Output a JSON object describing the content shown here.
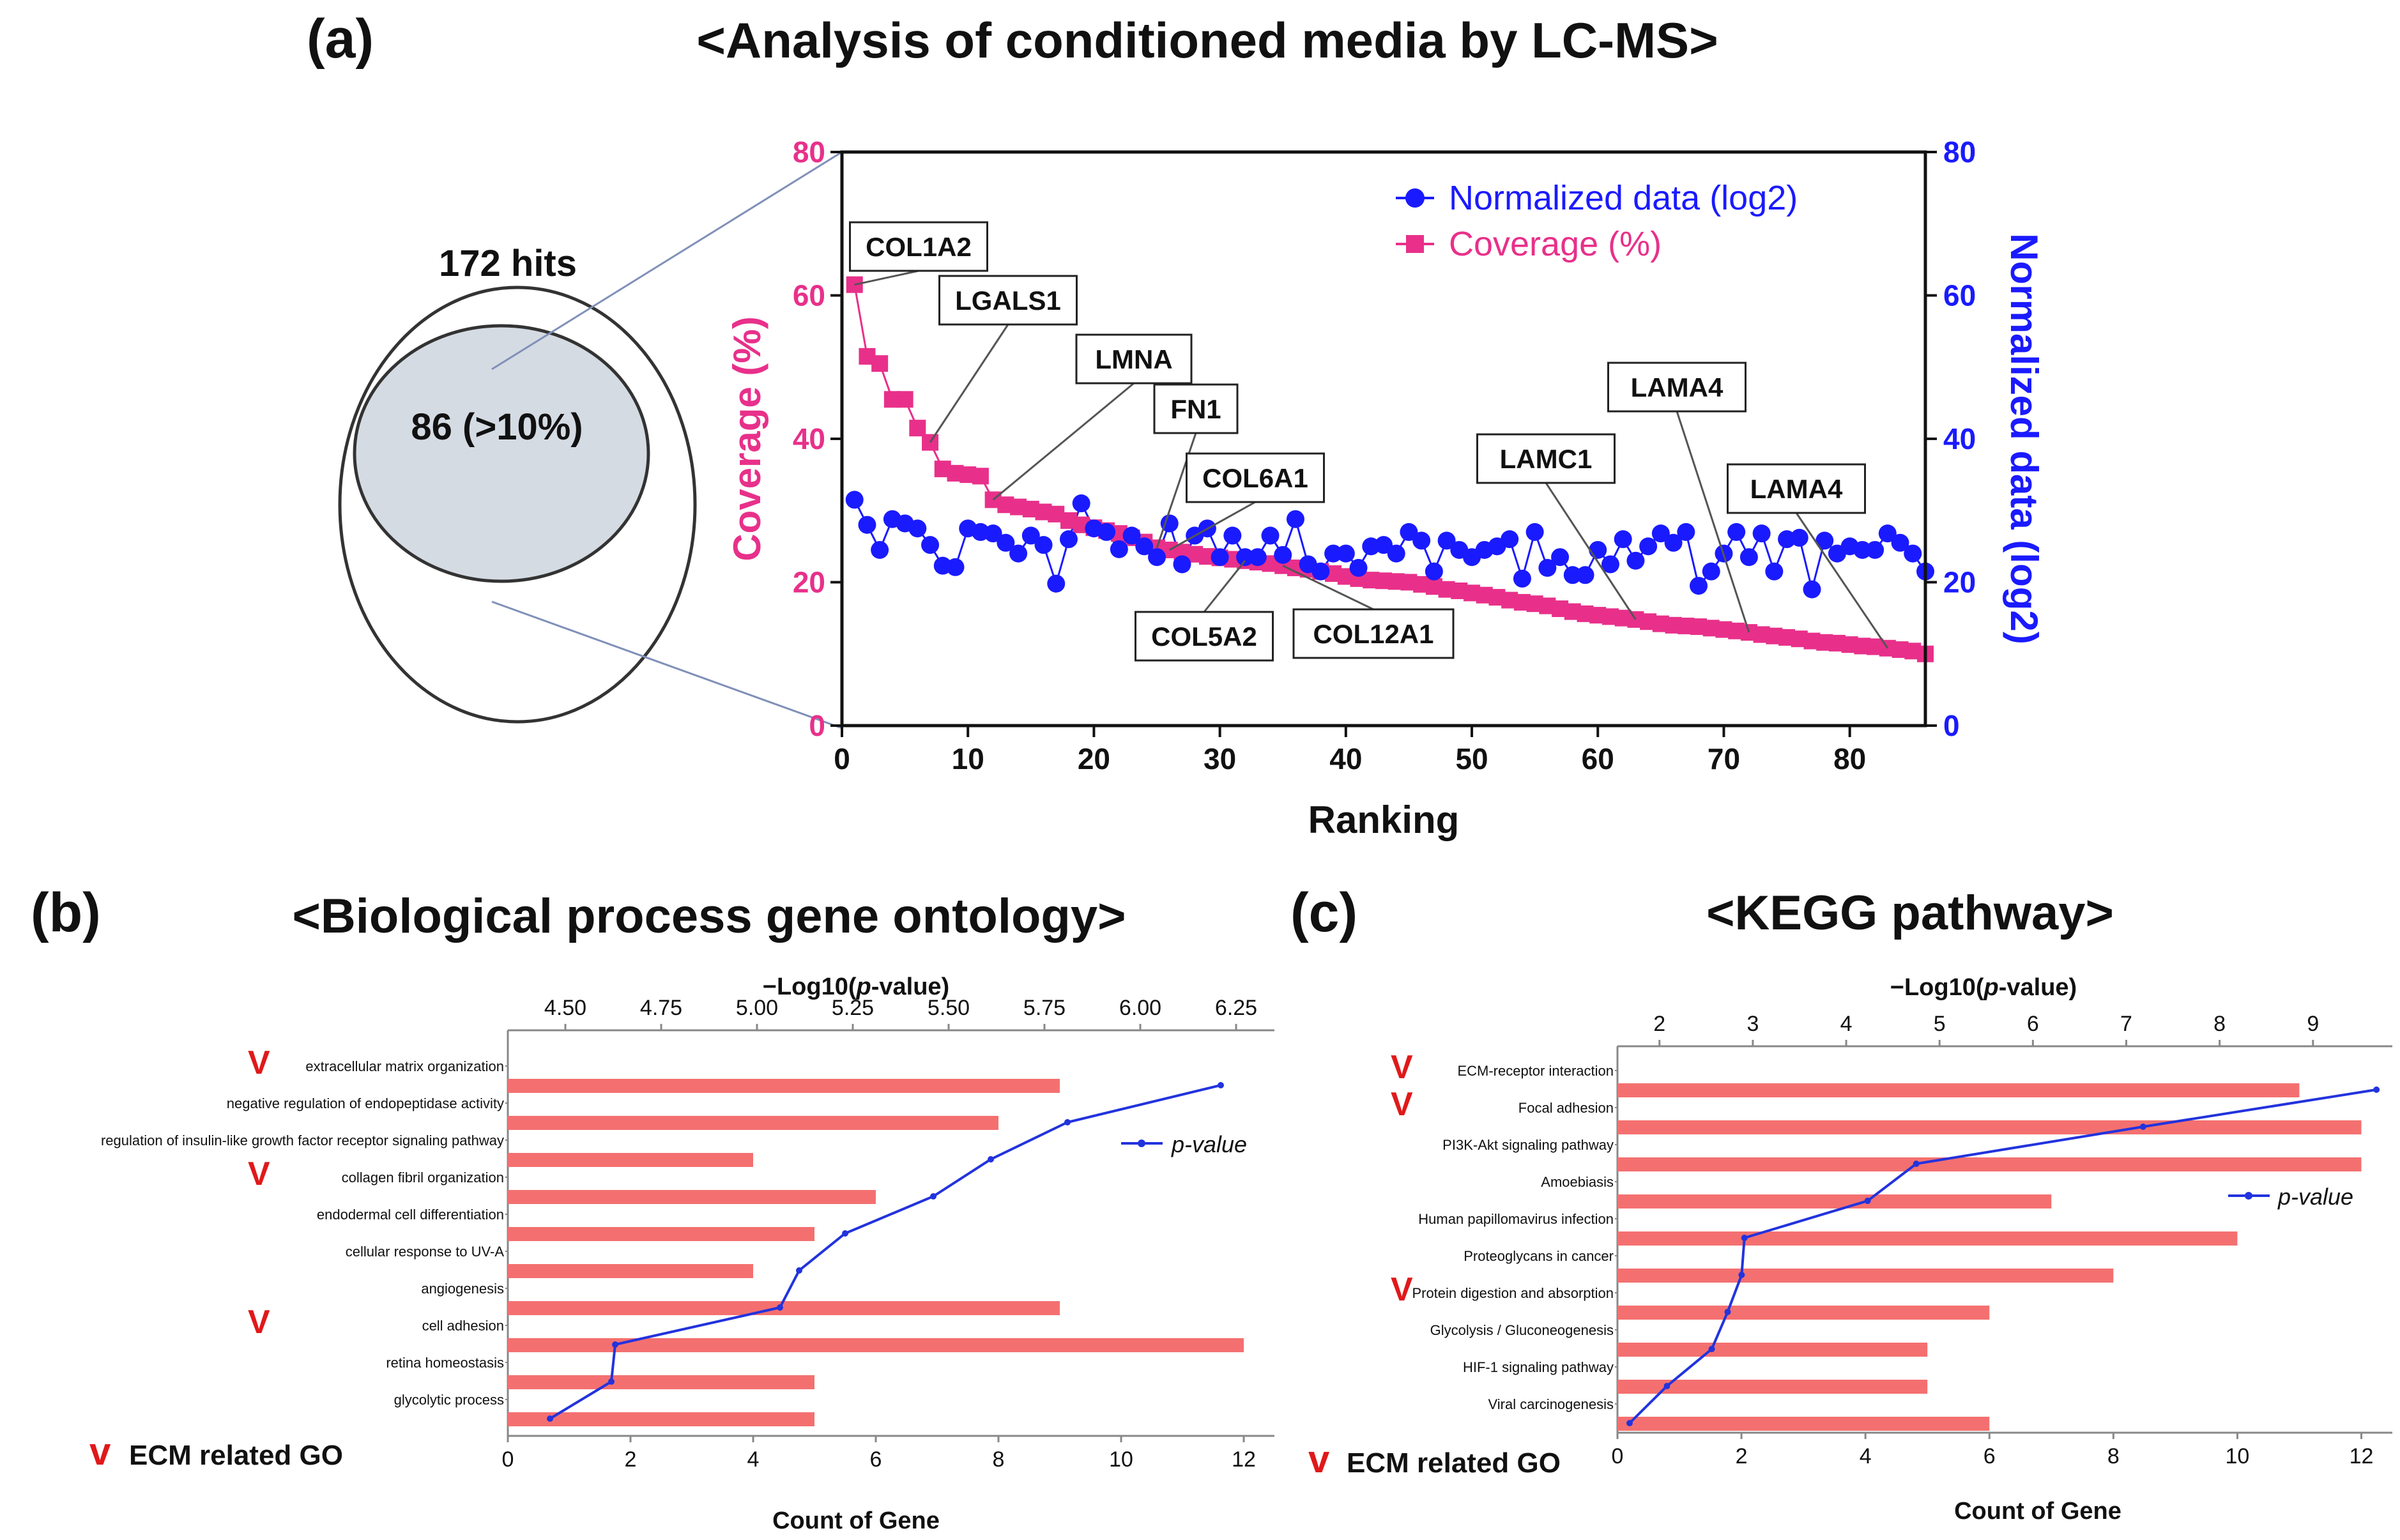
{
  "panels": {
    "a": {
      "label": "(a)",
      "title": "<Analysis of conditioned media by LC-MS>"
    },
    "b": {
      "label": "(b)",
      "title": "<Biological process gene ontology>"
    },
    "c": {
      "label": "(c)",
      "title": "<KEGG pathway>"
    }
  },
  "venn": {
    "outer_label": "172 hits",
    "inner_label": "86 (>10%)"
  },
  "colors": {
    "pink": "#e8308a",
    "blue": "#1a1aff",
    "bar": "#f47070",
    "line": "#2233dd",
    "check": "#e0191a",
    "venn_inner": "#d5dbe3"
  },
  "chart_data": [
    {
      "id": "lcms",
      "type": "scatter",
      "title": "<Analysis of conditioned media by LC-MS>",
      "xlabel": "Ranking",
      "ylabel": "Coverage (%)",
      "y2label": "Normalized data (log2)",
      "xlim": [
        0,
        86
      ],
      "ylim": [
        0,
        80
      ],
      "y2lim": [
        0,
        80
      ],
      "xticks": [
        0,
        10,
        20,
        30,
        40,
        50,
        60,
        70,
        80
      ],
      "yticks": [
        0,
        20,
        40,
        60,
        80
      ],
      "legend": [
        "Normalized data (log2)",
        "Coverage (%)"
      ],
      "legend_position": "top-right",
      "series": [
        {
          "name": "Coverage (%)",
          "axis": "left",
          "marker": "square",
          "values": [
            61.5,
            51.5,
            50.5,
            45.5,
            45.5,
            41.5,
            39.5,
            35.8,
            35.2,
            35.0,
            34.8,
            31.5,
            30.8,
            30.5,
            30.2,
            29.8,
            29.5,
            28.6,
            28.0,
            27.6,
            27.2,
            26.8,
            26.2,
            25.6,
            24.8,
            24.5,
            24.2,
            23.9,
            23.6,
            23.4,
            23.2,
            23.0,
            22.8,
            22.6,
            22.3,
            22.0,
            21.8,
            21.5,
            21.2,
            20.8,
            20.5,
            20.3,
            20.2,
            20.1,
            20.0,
            19.7,
            19.4,
            19.0,
            18.8,
            18.5,
            18.2,
            17.9,
            17.5,
            17.2,
            17.0,
            16.7,
            16.3,
            15.9,
            15.6,
            15.4,
            15.2,
            15.0,
            14.8,
            14.5,
            14.2,
            14.0,
            13.9,
            13.8,
            13.6,
            13.4,
            13.2,
            13.0,
            12.7,
            12.5,
            12.3,
            12.1,
            11.8,
            11.6,
            11.5,
            11.3,
            11.1,
            11.0,
            10.8,
            10.6,
            10.4,
            10.0
          ]
        },
        {
          "name": "Normalized data (log2)",
          "axis": "right",
          "marker": "circle",
          "values": [
            31.5,
            28.0,
            24.5,
            28.8,
            28.2,
            27.5,
            25.2,
            22.3,
            22.1,
            27.5,
            27.0,
            26.8,
            25.5,
            24.0,
            26.5,
            25.2,
            19.8,
            26.0,
            31.0,
            27.5,
            27.0,
            24.6,
            26.5,
            25.0,
            23.5,
            28.2,
            22.5,
            26.5,
            27.5,
            23.5,
            26.5,
            23.5,
            23.5,
            26.5,
            23.8,
            28.8,
            22.5,
            21.5,
            24.0,
            24.0,
            22.0,
            25.0,
            25.2,
            24.0,
            27.0,
            25.8,
            21.5,
            25.8,
            24.5,
            23.5,
            24.5,
            25.0,
            26.0,
            20.5,
            27.0,
            22.0,
            23.5,
            21.0,
            21.0,
            24.5,
            22.5,
            26.0,
            23.0,
            25.0,
            26.8,
            25.5,
            27.0,
            19.5,
            21.5,
            24.0,
            27.0,
            23.5,
            26.8,
            21.5,
            26.0,
            26.2,
            19.0,
            25.8,
            24.0,
            25.0,
            24.5,
            24.5,
            26.8,
            25.5,
            24.0,
            21.5
          ]
        }
      ],
      "annotations": [
        {
          "text": "COL1A2",
          "rank": 1
        },
        {
          "text": "LGALS1",
          "rank": 7
        },
        {
          "text": "LMNA",
          "rank": 12
        },
        {
          "text": "FN1",
          "rank": 25
        },
        {
          "text": "COL6A1",
          "rank": 26
        },
        {
          "text": "COL5A2",
          "rank": 32
        },
        {
          "text": "COL12A1",
          "rank": 35
        },
        {
          "text": "LAMC1",
          "rank": 63
        },
        {
          "text": "LAMA4",
          "rank": 72
        },
        {
          "text": "LAMA4",
          "rank": 83
        }
      ]
    },
    {
      "id": "go",
      "type": "bar",
      "title": "<Biological process gene ontology>",
      "xlabel": "Count of Gene",
      "x2label": "−Log10(p-value)",
      "xlim": [
        0,
        12.5
      ],
      "xticks": [
        0,
        2,
        4,
        6,
        8,
        10,
        12
      ],
      "x2lim": [
        4.35,
        6.35
      ],
      "x2ticks": [
        "4.50",
        "4.75",
        "5.00",
        "5.25",
        "5.50",
        "5.75",
        "6.00",
        "6.25"
      ],
      "categories": [
        "extracellular matrix organization",
        "negative regulation of endopeptidase activity",
        "regulation of insulin-like growth factor receptor signaling pathway",
        "collagen fibril organization",
        "endodermal cell differentiation",
        "cellular response to UV-A",
        "angiogenesis",
        "cell adhesion",
        "retina homeostasis",
        "glycolytic  process"
      ],
      "ecm_related": [
        true,
        false,
        false,
        true,
        false,
        false,
        false,
        true,
        false,
        false
      ],
      "series": [
        {
          "name": "Count of Gene",
          "values": [
            9,
            8,
            4,
            6,
            5,
            4,
            9,
            12,
            5,
            5
          ]
        },
        {
          "name": "p-value",
          "values": [
            6.21,
            5.81,
            5.61,
            5.46,
            5.23,
            5.11,
            5.06,
            4.63,
            4.62,
            4.46
          ]
        }
      ],
      "legend": "p-value",
      "legend_position": "top-right",
      "footnote_mark": "v",
      "footnote": "ECM related GO"
    },
    {
      "id": "kegg",
      "type": "bar",
      "title": "<KEGG pathway>",
      "xlabel": "Count of Gene",
      "x2label": "−Log10(p-value)",
      "xlim": [
        0,
        12.5
      ],
      "xticks": [
        0,
        2,
        4,
        6,
        8,
        10,
        12
      ],
      "x2lim": [
        1.55,
        9.85
      ],
      "x2ticks": [
        "2",
        "3",
        "4",
        "5",
        "6",
        "7",
        "8",
        "9"
      ],
      "categories": [
        "ECM-receptor interaction",
        "Focal adhesion",
        "PI3K-Akt signaling pathway",
        "Amoebiasis",
        "Human papillomavirus infection",
        "Proteoglycans in cancer",
        "Protein digestion and absorption",
        "Glycolysis / Gluconeogenesis",
        "HIF-1 signaling pathway",
        "Viral carcinogenesis"
      ],
      "ecm_related": [
        true,
        true,
        false,
        false,
        false,
        false,
        true,
        false,
        false,
        false
      ],
      "series": [
        {
          "name": "Count of Gene",
          "values": [
            11,
            12,
            12,
            7,
            10,
            8,
            6,
            5,
            5,
            6
          ]
        },
        {
          "name": "p-value",
          "values": [
            9.68,
            7.18,
            4.75,
            4.23,
            2.91,
            2.88,
            2.73,
            2.56,
            2.08,
            1.68
          ]
        }
      ],
      "legend": "p-value",
      "legend_position": "top-right",
      "footnote_mark": "v",
      "footnote": "ECM related GO"
    }
  ]
}
